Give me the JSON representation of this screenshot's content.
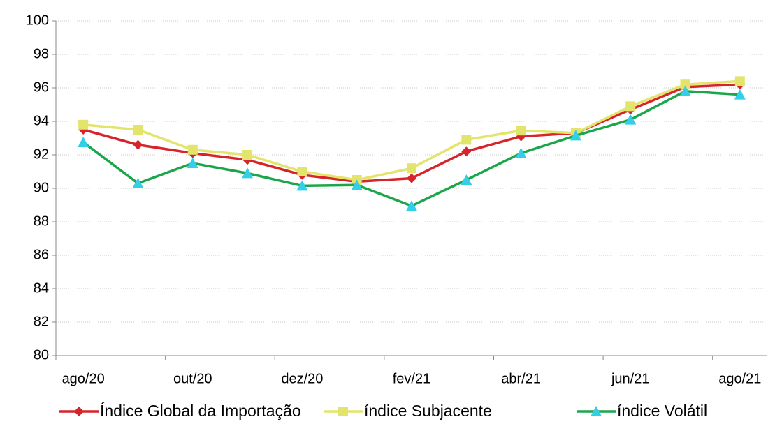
{
  "chart_data": {
    "type": "line",
    "categories": [
      "ago/20",
      null,
      "out/20",
      null,
      "dez/20",
      null,
      "fev/21",
      null,
      "abr/21",
      null,
      "jun/21",
      null,
      "ago/21"
    ],
    "series": [
      {
        "name": "Índice Global da Importação",
        "color": "#d7242b",
        "marker": "diamond",
        "marker_color": "#d7242b",
        "values": [
          93.5,
          92.6,
          92.1,
          91.7,
          90.8,
          90.4,
          90.6,
          92.2,
          93.1,
          93.3,
          94.7,
          96.05,
          96.2
        ]
      },
      {
        "name": "índice Subjacente",
        "color": "#e3e46c",
        "marker": "square",
        "marker_color": "#e3e46c",
        "values": [
          93.8,
          93.5,
          92.3,
          92.0,
          91.0,
          90.5,
          91.2,
          92.9,
          93.45,
          93.3,
          94.9,
          96.2,
          96.4
        ]
      },
      {
        "name": "índice Volátil",
        "color": "#1ca64c",
        "marker": "triangle",
        "marker_color": "#33cfe8",
        "values": [
          92.75,
          90.3,
          91.5,
          90.9,
          90.15,
          90.2,
          88.95,
          90.5,
          92.1,
          93.15,
          94.1,
          95.8,
          95.6
        ]
      }
    ],
    "ylim": [
      80,
      100
    ],
    "yticks": [
      80,
      82,
      84,
      86,
      88,
      90,
      92,
      94,
      96,
      98,
      100
    ],
    "grid": true,
    "legend": "bottom"
  }
}
